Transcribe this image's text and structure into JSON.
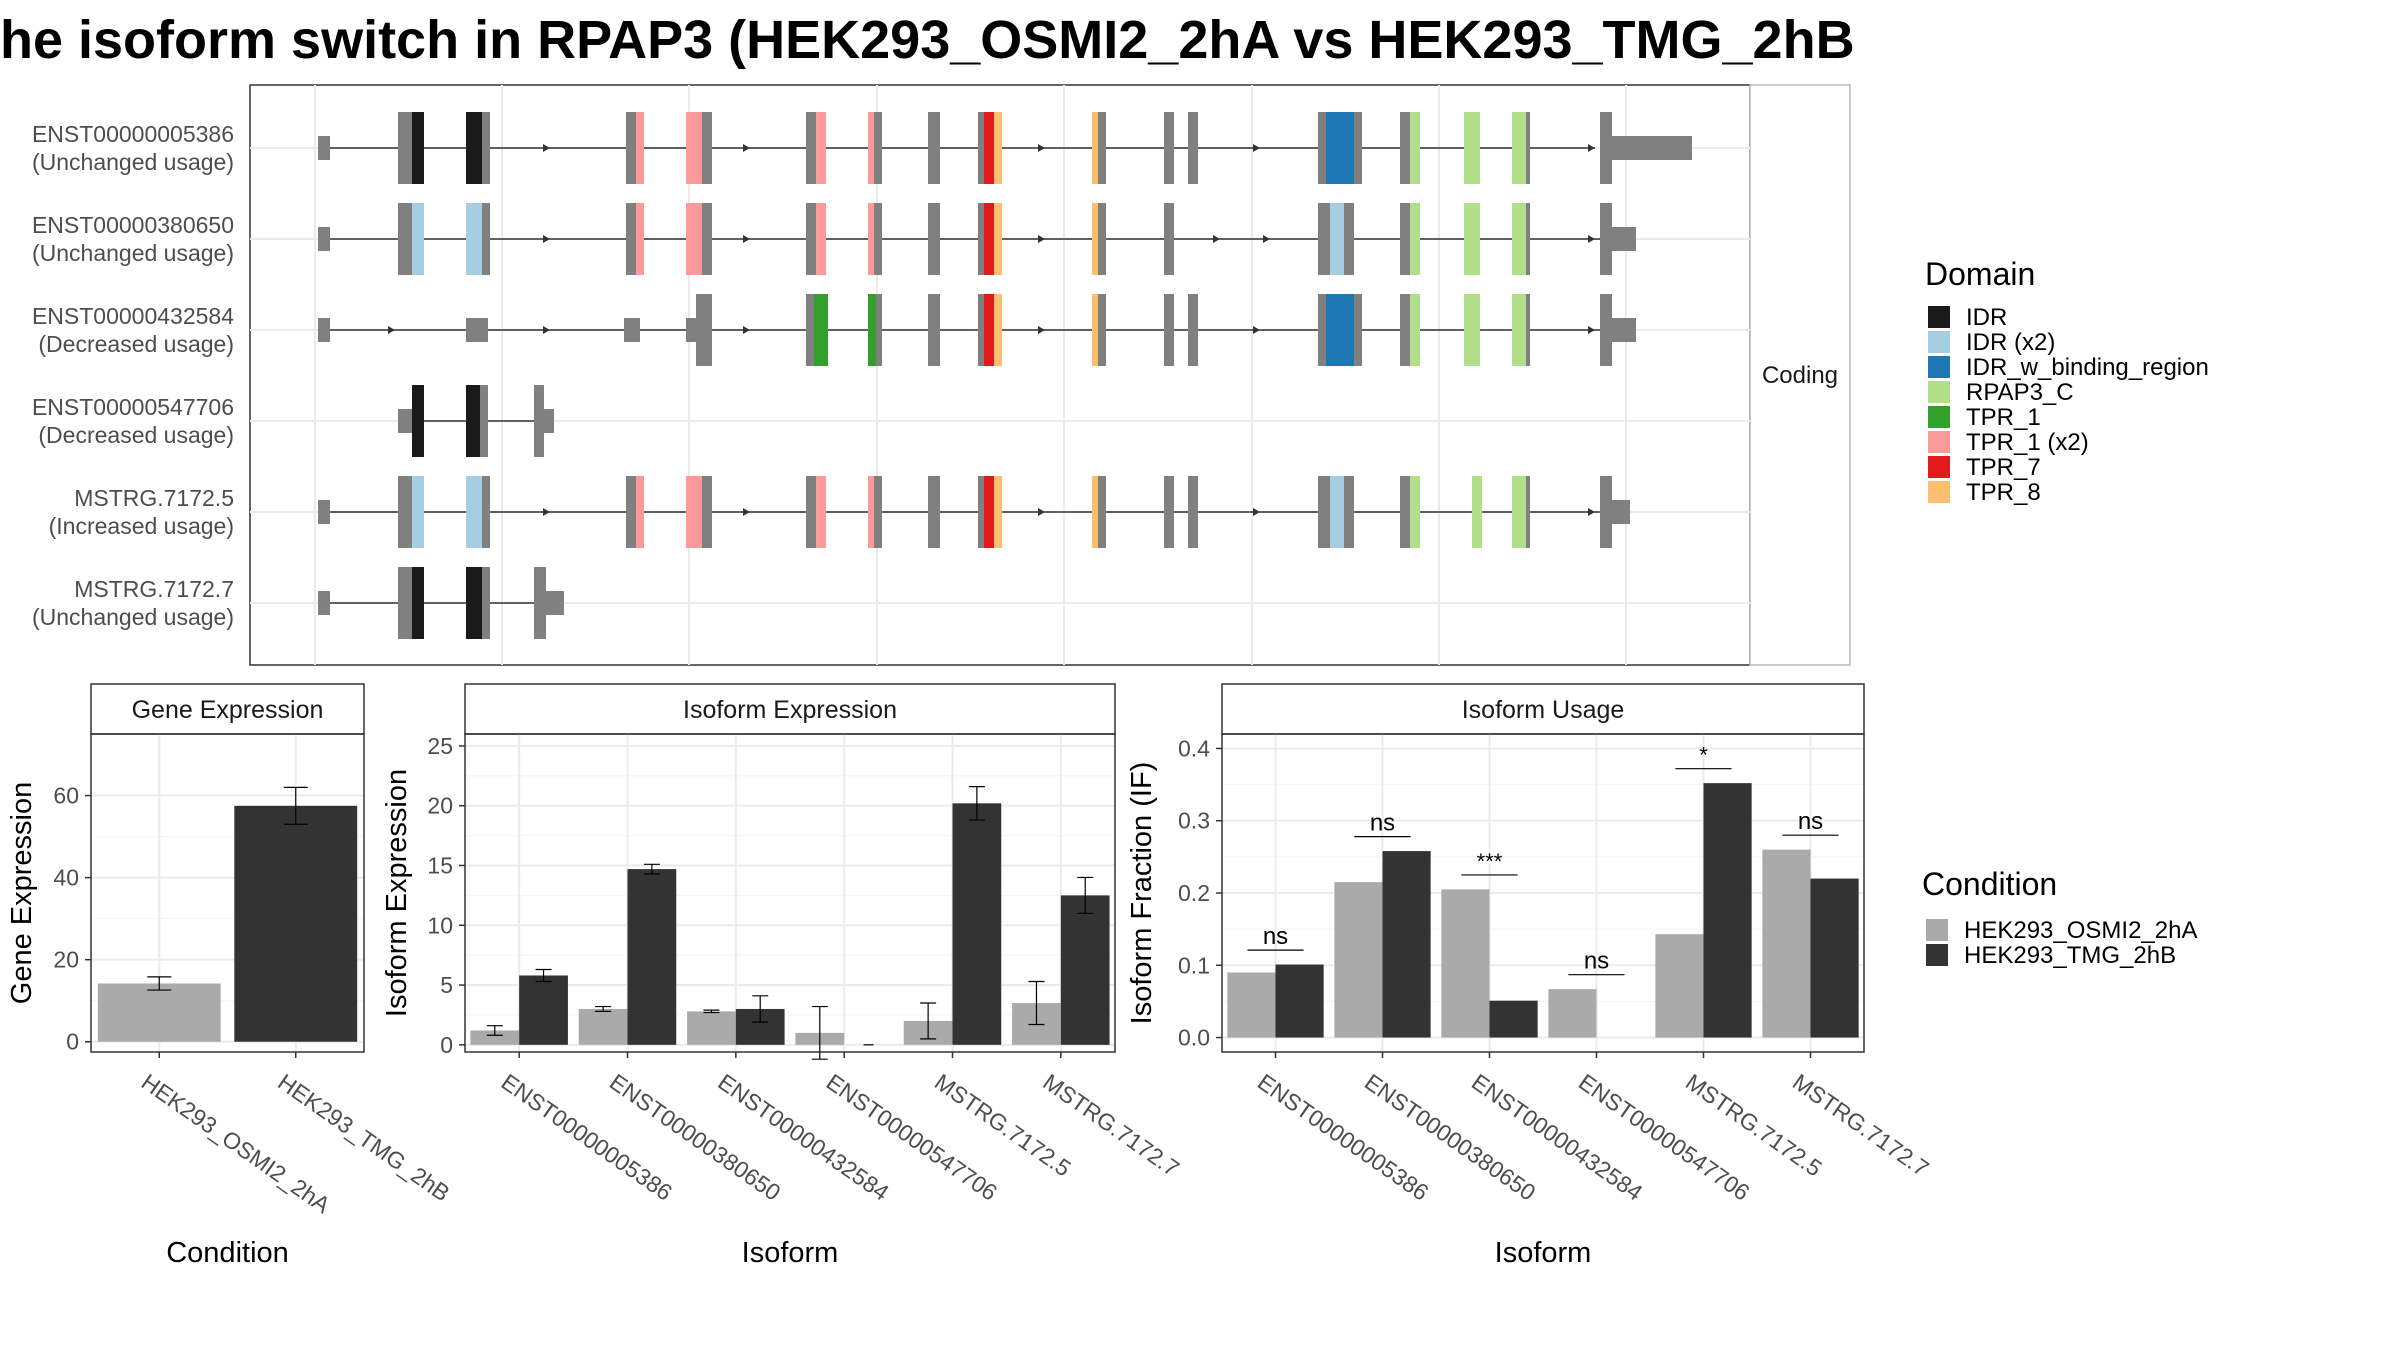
{
  "title": "he isoform switch in RPAP3 (HEK293_OSMI2_2hA vs HEK293_TMG_2hB",
  "structure_panel": {
    "facet_label": "Coding",
    "isoforms": [
      {
        "id": "ENST00000005386",
        "usage": "(Unchanged usage)"
      },
      {
        "id": "ENST00000380650",
        "usage": "(Unchanged usage)"
      },
      {
        "id": "ENST00000432584",
        "usage": "(Decreased usage)"
      },
      {
        "id": "ENST00000547706",
        "usage": "(Decreased usage)"
      },
      {
        "id": "MSTRG.7172.5",
        "usage": "(Increased usage)"
      },
      {
        "id": "MSTRG.7172.7",
        "usage": "(Unchanged usage)"
      }
    ]
  },
  "domain_legend": {
    "title": "Domain",
    "items": [
      {
        "label": "IDR",
        "color": "#1a1a1a"
      },
      {
        "label": "IDR (x2)",
        "color": "#a6cee3"
      },
      {
        "label": "IDR_w_binding_region",
        "color": "#1f78b4"
      },
      {
        "label": "RPAP3_C",
        "color": "#b2df8a"
      },
      {
        "label": "TPR_1",
        "color": "#33a02c"
      },
      {
        "label": "TPR_1 (x2)",
        "color": "#fb9a99"
      },
      {
        "label": "TPR_7",
        "color": "#e31a1c"
      },
      {
        "label": "TPR_8",
        "color": "#fdbf6f"
      }
    ]
  },
  "condition_legend": {
    "title": "Condition",
    "items": [
      {
        "label": "HEK293_OSMI2_2hA",
        "color": "#aaaaaa"
      },
      {
        "label": "HEK293_TMG_2hB",
        "color": "#333333"
      }
    ]
  },
  "chart_data": [
    {
      "type": "bar",
      "title": "Gene Expression",
      "xlabel": "Condition",
      "ylabel": "Gene Expression",
      "categories": [
        "HEK293_OSMI2_2hA",
        "HEK293_TMG_2hB"
      ],
      "values": [
        14.2,
        57.5
      ],
      "errors": [
        1.6,
        4.5
      ],
      "colors": [
        "#aaaaaa",
        "#333333"
      ],
      "ylim": [
        -2.5,
        75
      ],
      "yticks": [
        0,
        20,
        40,
        60
      ]
    },
    {
      "type": "bar",
      "title": "Isoform Expression",
      "xlabel": "Isoform",
      "ylabel": "Isoform Expression",
      "categories": [
        "ENST00000005386",
        "ENST00000380650",
        "ENST00000432584",
        "ENST00000547706",
        "MSTRG.7172.5",
        "MSTRG.7172.7"
      ],
      "series": [
        {
          "name": "HEK293_OSMI2_2hA",
          "values": [
            1.2,
            3.0,
            2.8,
            1.0,
            2.0,
            3.5
          ],
          "errors": [
            0.4,
            0.2,
            0.1,
            2.2,
            1.5,
            1.8
          ]
        },
        {
          "name": "HEK293_TMG_2hB",
          "values": [
            5.8,
            14.7,
            3.0,
            0.0,
            20.2,
            12.5
          ],
          "errors": [
            0.5,
            0.4,
            1.1,
            0.0,
            1.4,
            1.5
          ]
        }
      ],
      "ylim": [
        -0.6,
        26
      ],
      "yticks": [
        0,
        5,
        10,
        15,
        20,
        25
      ]
    },
    {
      "type": "bar",
      "title": "Isoform Usage",
      "xlabel": "Isoform",
      "ylabel": "Isoform Fraction (IF)",
      "categories": [
        "ENST00000005386",
        "ENST00000380650",
        "ENST00000432584",
        "ENST00000547706",
        "MSTRG.7172.5",
        "MSTRG.7172.7"
      ],
      "series": [
        {
          "name": "HEK293_OSMI2_2hA",
          "values": [
            0.09,
            0.215,
            0.205,
            0.067,
            0.143,
            0.26
          ]
        },
        {
          "name": "HEK293_TMG_2hB",
          "values": [
            0.101,
            0.258,
            0.051,
            0.0,
            0.352,
            0.22
          ]
        }
      ],
      "significance": [
        "ns",
        "ns",
        "***",
        "ns",
        "*",
        "ns"
      ],
      "ylim": [
        -0.02,
        0.42
      ],
      "yticks": [
        0.0,
        0.1,
        0.2,
        0.3,
        0.4
      ],
      "ytick_labels": [
        "0.0",
        "0.1",
        "0.2",
        "0.3",
        "0.4"
      ]
    }
  ]
}
